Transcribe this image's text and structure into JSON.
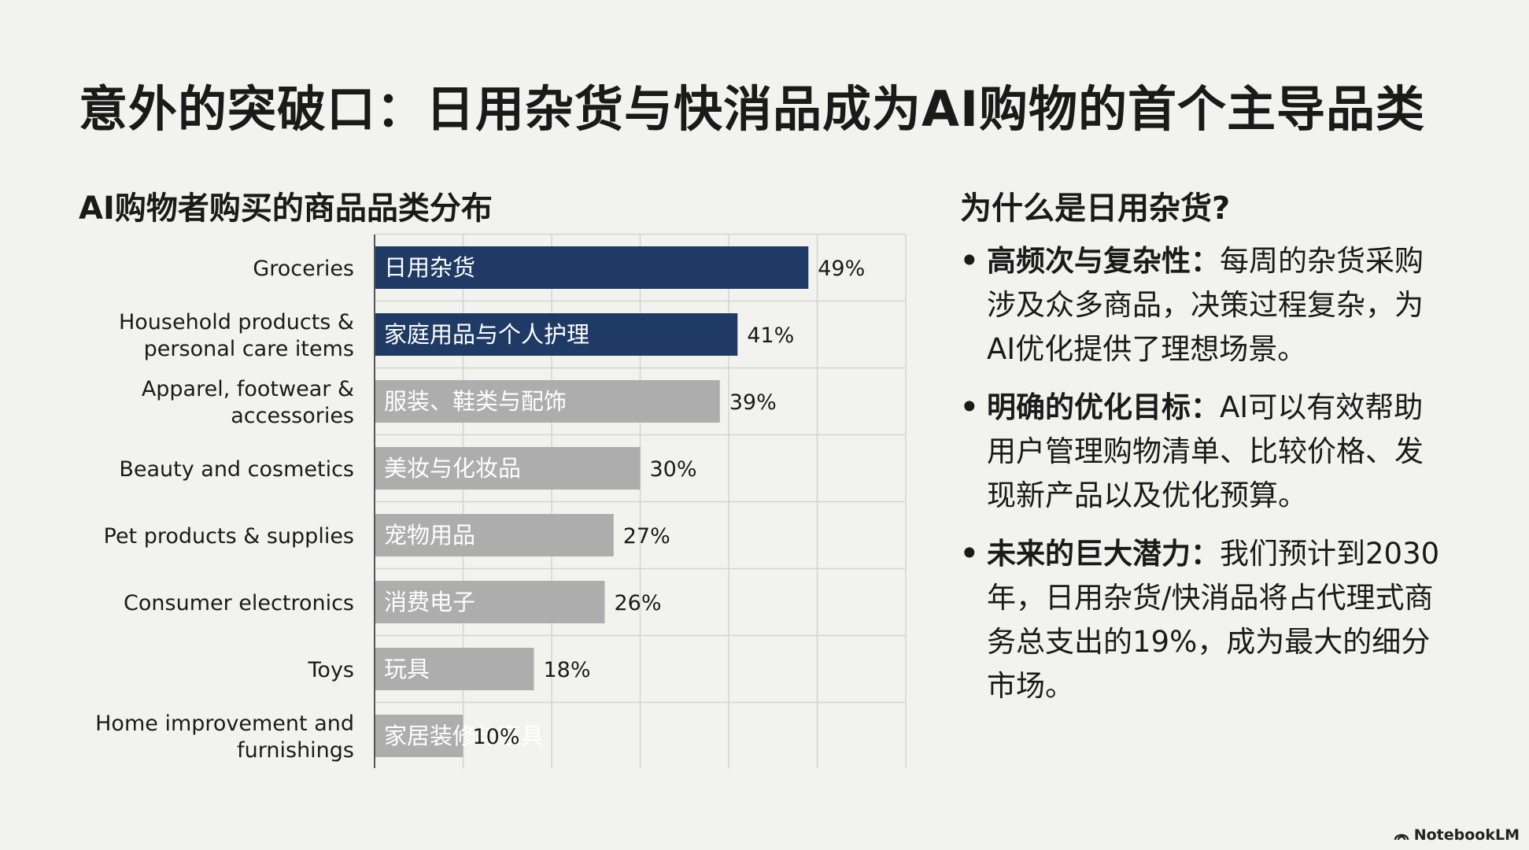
{
  "title": "意外的突破口：日用杂货与快消品成为AI购物的首个主导品类",
  "chart_data": {
    "type": "bar",
    "orientation": "horizontal",
    "title": "AI购物者购买的商品品类分布",
    "categories": [
      [
        "Groceries"
      ],
      [
        "Household products &",
        "personal care items"
      ],
      [
        "Apparel, footwear &",
        "accessories"
      ],
      [
        "Beauty and cosmetics"
      ],
      [
        "Pet products & supplies"
      ],
      [
        "Consumer electronics"
      ],
      [
        "Toys"
      ],
      [
        "Home improvement and",
        "furnishings"
      ]
    ],
    "bar_labels": [
      "日用杂货",
      "家庭用品与个人护理",
      "服装、鞋类与配饰",
      "美妆与化妆品",
      "宠物用品",
      "消费电子",
      "玩具",
      "家居装修与家具"
    ],
    "values": [
      49,
      41,
      39,
      30,
      27,
      26,
      18,
      10
    ],
    "value_labels": [
      "49%",
      "41%",
      "39%",
      "30%",
      "27%",
      "26%",
      "18%",
      "10%"
    ],
    "xlim": [
      0,
      60
    ],
    "grid": true,
    "colors": {
      "highlight": "#1f3a64",
      "default": "#adadad",
      "grid": "#d4d4d4",
      "axis": "#555555"
    },
    "highlight_count": 2
  },
  "side": {
    "heading": "为什么是日用杂货?",
    "bullets": [
      {
        "lead": "高频次与复杂性：",
        "text": "每周的杂货采购涉及众多商品，决策过程复杂，为AI优化提供了理想场景。"
      },
      {
        "lead": "明确的优化目标：",
        "text": "AI可以有效帮助用户管理购物清单、比较价格、发现新产品以及优化预算。"
      },
      {
        "lead": "未来的巨大潜力：",
        "text": "我们预计到2030 年，日用杂货/快消品将占代理式商务总支出的19%，成为最大的细分市场。"
      }
    ]
  },
  "footer": {
    "brand": "NotebookLM"
  }
}
